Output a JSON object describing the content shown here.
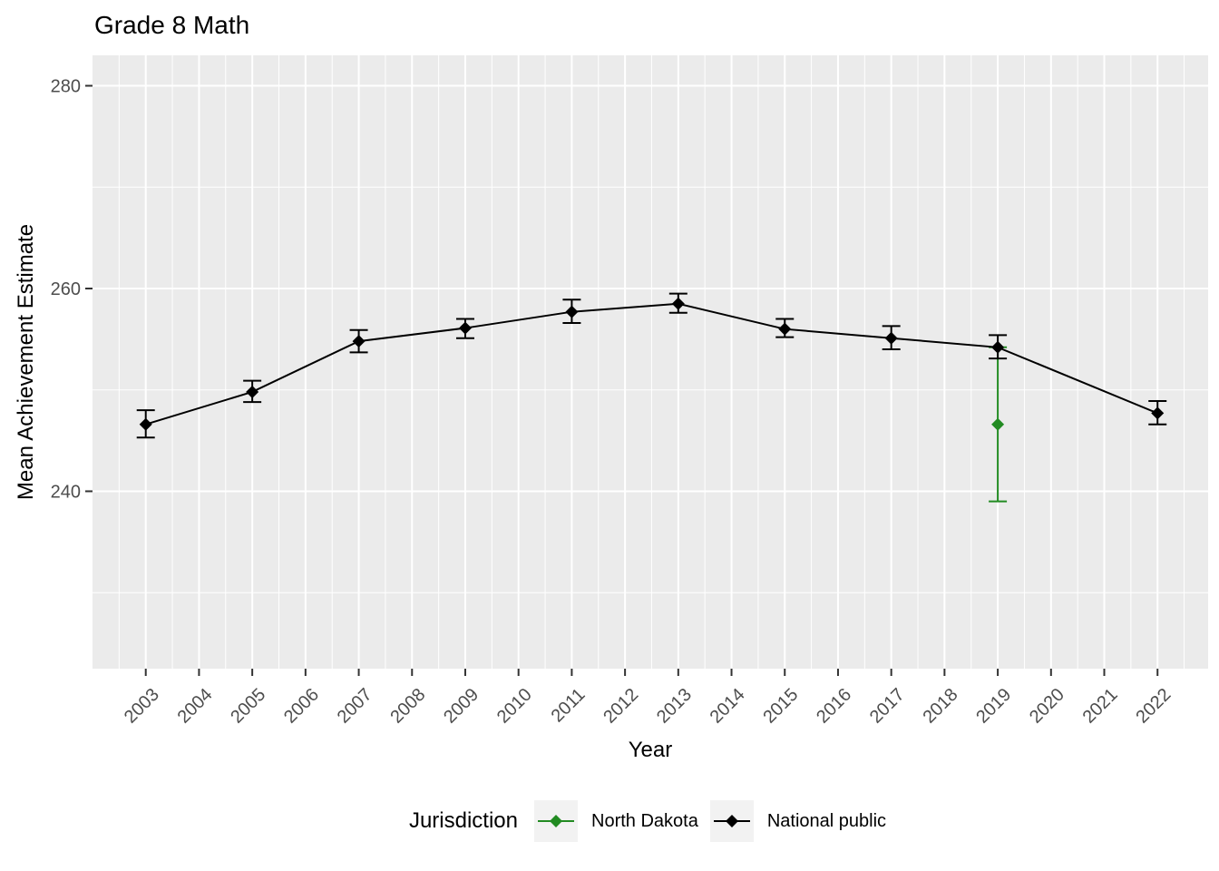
{
  "title": "Grade 8 Math",
  "legend": {
    "title": "Jurisdiction",
    "items": [
      {
        "label": "North Dakota",
        "color": "#228B22"
      },
      {
        "label": "National public",
        "color": "#000000"
      }
    ]
  },
  "colors": {
    "panel_background": "#EBEBEB",
    "gridline": "#FFFFFF",
    "tick_mark": "#333333",
    "tick_label": "#4D4D4D",
    "axis_title": "#000000",
    "legend_key_background": "#F2F2F2",
    "north_dakota": "#228B22",
    "national_public": "#000000"
  },
  "chart_data": {
    "type": "line",
    "title": "Grade 8 Math",
    "xlabel": "Year",
    "ylabel": "Mean Achievement Estimate",
    "xlim": [
      2002.0,
      2022.95
    ],
    "ylim": [
      222.5,
      283.0
    ],
    "x_ticks": [
      2003,
      2004,
      2005,
      2006,
      2007,
      2008,
      2009,
      2010,
      2011,
      2012,
      2013,
      2014,
      2015,
      2016,
      2017,
      2018,
      2019,
      2020,
      2021,
      2022
    ],
    "y_ticks": [
      240,
      260,
      280
    ],
    "y_minor_ticks": [
      230,
      250,
      270
    ],
    "grid": true,
    "legend_position": "bottom",
    "legend_title": "Jurisdiction",
    "marker": "diamond",
    "error_bars": true,
    "series": [
      {
        "name": "North Dakota",
        "color": "#228B22",
        "points": [
          {
            "x": 2019,
            "y": 246.6,
            "ci_low": 239.0,
            "ci_high": 254.2
          }
        ]
      },
      {
        "name": "National public",
        "color": "#000000",
        "points": [
          {
            "x": 2003,
            "y": 246.6,
            "ci_low": 245.3,
            "ci_high": 248.0
          },
          {
            "x": 2005,
            "y": 249.8,
            "ci_low": 248.8,
            "ci_high": 250.9
          },
          {
            "x": 2007,
            "y": 254.8,
            "ci_low": 253.7,
            "ci_high": 255.9
          },
          {
            "x": 2009,
            "y": 256.1,
            "ci_low": 255.1,
            "ci_high": 257.0
          },
          {
            "x": 2011,
            "y": 257.7,
            "ci_low": 256.6,
            "ci_high": 258.9
          },
          {
            "x": 2013,
            "y": 258.5,
            "ci_low": 257.6,
            "ci_high": 259.5
          },
          {
            "x": 2015,
            "y": 256.0,
            "ci_low": 255.2,
            "ci_high": 257.0
          },
          {
            "x": 2017,
            "y": 255.1,
            "ci_low": 254.0,
            "ci_high": 256.3
          },
          {
            "x": 2019,
            "y": 254.2,
            "ci_low": 253.1,
            "ci_high": 255.4
          },
          {
            "x": 2022,
            "y": 247.7,
            "ci_low": 246.6,
            "ci_high": 248.9
          }
        ]
      }
    ]
  }
}
